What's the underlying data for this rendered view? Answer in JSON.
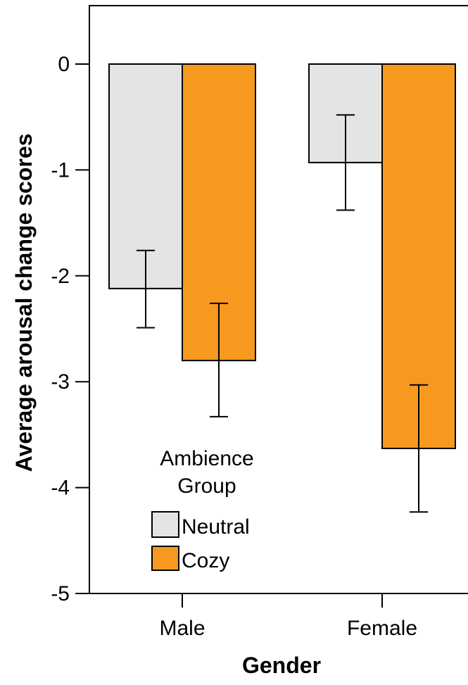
{
  "chart_data": {
    "type": "bar",
    "xlabel": "Gender",
    "ylabel": "Average arousal change scores",
    "ylim": [
      -5,
      0.55
    ],
    "yticks": [
      0,
      -1,
      -2,
      -3,
      -4,
      -5
    ],
    "ytick_labels": [
      "0",
      "-1",
      "-2",
      "-3",
      "-4",
      "-5"
    ],
    "categories": [
      "Male",
      "Female"
    ],
    "series": [
      {
        "name": "Neutral",
        "color": "#e4e4e4",
        "values": [
          -2.12,
          -0.93
        ],
        "error_low": [
          -2.49,
          -1.38
        ],
        "error_high": [
          -1.76,
          -0.48
        ]
      },
      {
        "name": "Cozy",
        "color": "#f7991f",
        "values": [
          -2.8,
          -3.63
        ],
        "error_low": [
          -3.33,
          -4.23
        ],
        "error_high": [
          -2.26,
          -3.03
        ]
      }
    ],
    "legend": {
      "title_line1": "Ambience",
      "title_line2": "Group",
      "placement": "lower-left"
    },
    "grid": false
  }
}
